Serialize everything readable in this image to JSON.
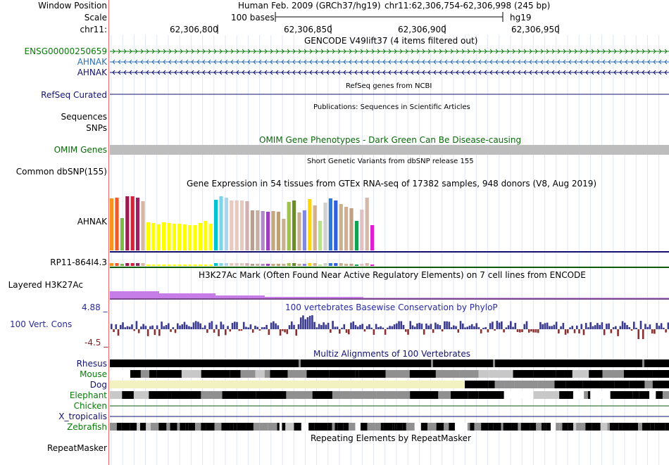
{
  "header": {
    "window_position_label": "Window Position",
    "scale_label": "Scale",
    "chrom_label": "chr11:",
    "assembly": "Human Feb. 2009 (GRCh37/hg19)",
    "position": "chr11:62,306,754-62,306,998 (245 bp)",
    "scale_text": "100 bases",
    "scale_db": "hg19",
    "ticks": [
      "62,306,800",
      "62,306,850",
      "62,306,900",
      "62,306,950"
    ]
  },
  "tracks": {
    "gencode": {
      "title": "GENCODE V49lift37 (4 items filtered out)",
      "items": [
        "ENSG00000250659",
        "AHNAK",
        "AHNAK"
      ],
      "colors": [
        "#0a7a0a",
        "#2a6fb0",
        "#12126e"
      ]
    },
    "refseq": {
      "label": "RefSeq Curated",
      "title": "RefSeq genes from NCBI"
    },
    "publications": {
      "label": "Sequences",
      "title": "Publications: Sequences in Scientific Articles"
    },
    "snps": {
      "label": "SNPs"
    },
    "omim": {
      "label": "OMIM Genes",
      "title": "OMIM Gene Phenotypes - Dark Green Can Be Disease-causing"
    },
    "dbsnp": {
      "label": "Common dbSNP(155)",
      "title": "Short Genetic Variants from dbSNP release 155"
    },
    "gtex": {
      "title": "Gene Expression in 54 tissues from GTEx RNA-seq of 17382 samples, 948 donors (V8, Aug 2019)",
      "gene1": "AHNAK",
      "gene2": "RP11-864I4.3"
    },
    "h3k27ac": {
      "label": "Layered H3K27Ac",
      "title": "H3K27Ac Mark (Often Found Near Active Regulatory Elements) on 7 cell lines from ENCODE"
    },
    "phylop": {
      "label": "100 Vert. Cons",
      "title": "100 vertebrates Basewise Conservation by PhyloP",
      "max": "4.88 _",
      "min": "-4.5 _"
    },
    "multiz": {
      "title": "Multiz Alignments of 100 Vertebrates",
      "species": [
        "Rhesus",
        "Mouse",
        "Dog",
        "Elephant",
        "Chicken",
        "X_tropicalis",
        "Zebrafish"
      ]
    },
    "repeatmasker": {
      "label": "RepeatMasker",
      "title": "Repeating Elements by RepeatMasker"
    }
  }
}
